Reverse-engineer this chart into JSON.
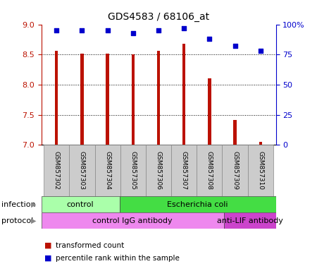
{
  "title": "GDS4583 / 68106_at",
  "samples": [
    "GSM857302",
    "GSM857303",
    "GSM857304",
    "GSM857305",
    "GSM857306",
    "GSM857307",
    "GSM857308",
    "GSM857309",
    "GSM857310"
  ],
  "transformed_count": [
    8.56,
    8.52,
    8.52,
    8.5,
    8.56,
    8.68,
    8.1,
    7.42,
    7.05
  ],
  "percentile_rank": [
    95,
    95,
    95,
    93,
    95,
    97,
    88,
    82,
    78
  ],
  "ylim_left": [
    7,
    9
  ],
  "ylim_right": [
    0,
    100
  ],
  "yticks_left": [
    7,
    7.5,
    8,
    8.5,
    9
  ],
  "yticks_right": [
    0,
    25,
    50,
    75,
    100
  ],
  "bar_color": "#bb1100",
  "dot_color": "#0000cc",
  "grid_color": "#000000",
  "infection_groups": [
    {
      "label": "control",
      "start": 0,
      "end": 3,
      "color": "#aaffaa"
    },
    {
      "label": "Escherichia coli",
      "start": 3,
      "end": 9,
      "color": "#44dd44"
    }
  ],
  "protocol_groups": [
    {
      "label": "control IgG antibody",
      "start": 0,
      "end": 7,
      "color": "#ee88ee"
    },
    {
      "label": "anti-LIF antibody",
      "start": 7,
      "end": 9,
      "color": "#cc44cc"
    }
  ],
  "infection_label": "infection",
  "protocol_label": "protocol",
  "legend_items": [
    {
      "color": "#bb1100",
      "label": "transformed count"
    },
    {
      "color": "#0000cc",
      "label": "percentile rank within the sample"
    }
  ],
  "bg_color": "#ffffff",
  "sample_box_color": "#cccccc",
  "bar_width": 0.12
}
